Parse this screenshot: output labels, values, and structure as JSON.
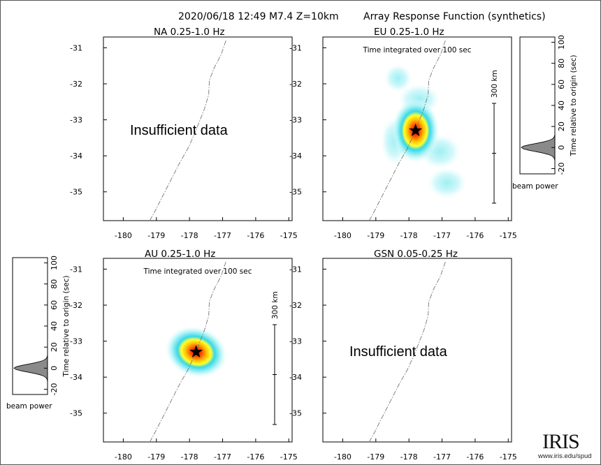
{
  "header": {
    "event": "2020/06/18 12:49  M7.4  Z=10km",
    "product": "Array Response Function (synthetics)"
  },
  "colors": {
    "frame": "#555555",
    "trench": "#777777",
    "beam_fill": "#8a8a8a"
  },
  "chart_data": [
    {
      "type": "heatmap",
      "id": "na",
      "title": "NA  0.25-1.0 Hz",
      "status": "Insufficient data",
      "xticks": [
        "-180",
        "-179",
        "-178",
        "-177",
        "-176",
        "-175"
      ],
      "yticks": [
        "-31",
        "-32",
        "-33",
        "-34",
        "-35"
      ],
      "xlim": [
        -180.6,
        -174.9
      ],
      "ylim": [
        -35.8,
        -30.7
      ]
    },
    {
      "type": "heatmap",
      "id": "eu",
      "title": "EU  0.25-1.0 Hz",
      "note": "Time integrated over 100 sec",
      "scale_label": "300 km",
      "xticks": [
        "-180",
        "-179",
        "-178",
        "-177",
        "-176",
        "-175"
      ],
      "yticks": [
        "-31",
        "-32",
        "-33",
        "-34",
        "-35"
      ],
      "xlim": [
        -180.6,
        -174.9
      ],
      "ylim": [
        -35.8,
        -30.7
      ],
      "peak": {
        "lon": -177.8,
        "lat": -33.3
      }
    },
    {
      "type": "heatmap",
      "id": "au",
      "title": "AU  0.25-1.0 Hz",
      "note": "Time integrated over 100 sec",
      "scale_label": "300 km",
      "xticks": [
        "-180",
        "-179",
        "-178",
        "-177",
        "-176",
        "-175"
      ],
      "yticks": [
        "-31",
        "-32",
        "-33",
        "-34",
        "-35"
      ],
      "xlim": [
        -180.6,
        -174.9
      ],
      "ylim": [
        -35.8,
        -30.7
      ],
      "peak": {
        "lon": -177.8,
        "lat": -33.3
      }
    },
    {
      "type": "heatmap",
      "id": "gsn",
      "title": "GSN  0.05-0.25 Hz",
      "status": "Insufficient data",
      "xticks": [
        "-180",
        "-179",
        "-178",
        "-177",
        "-176",
        "-175"
      ],
      "yticks": [
        "-31",
        "-32",
        "-33",
        "-34",
        "-35"
      ],
      "xlim": [
        -180.6,
        -174.9
      ],
      "ylim": [
        -35.8,
        -30.7
      ]
    },
    {
      "type": "area",
      "id": "beam-eu",
      "ylabel": "Time relative to origin (sec)",
      "xlabel": "beam power",
      "yticks": [
        "100",
        "80",
        "60",
        "40",
        "20",
        "0",
        "-20"
      ],
      "ylim": [
        -25,
        105
      ],
      "peak_time": 0
    },
    {
      "type": "area",
      "id": "beam-au",
      "ylabel": "Time relative to origin (sec)",
      "xlabel": "beam power",
      "yticks": [
        "100",
        "80",
        "60",
        "40",
        "20",
        "0",
        "-20"
      ],
      "ylim": [
        -25,
        105
      ],
      "peak_time": 0
    }
  ],
  "logo": {
    "text": "IRIS",
    "url": "www.iris.edu/spud"
  }
}
